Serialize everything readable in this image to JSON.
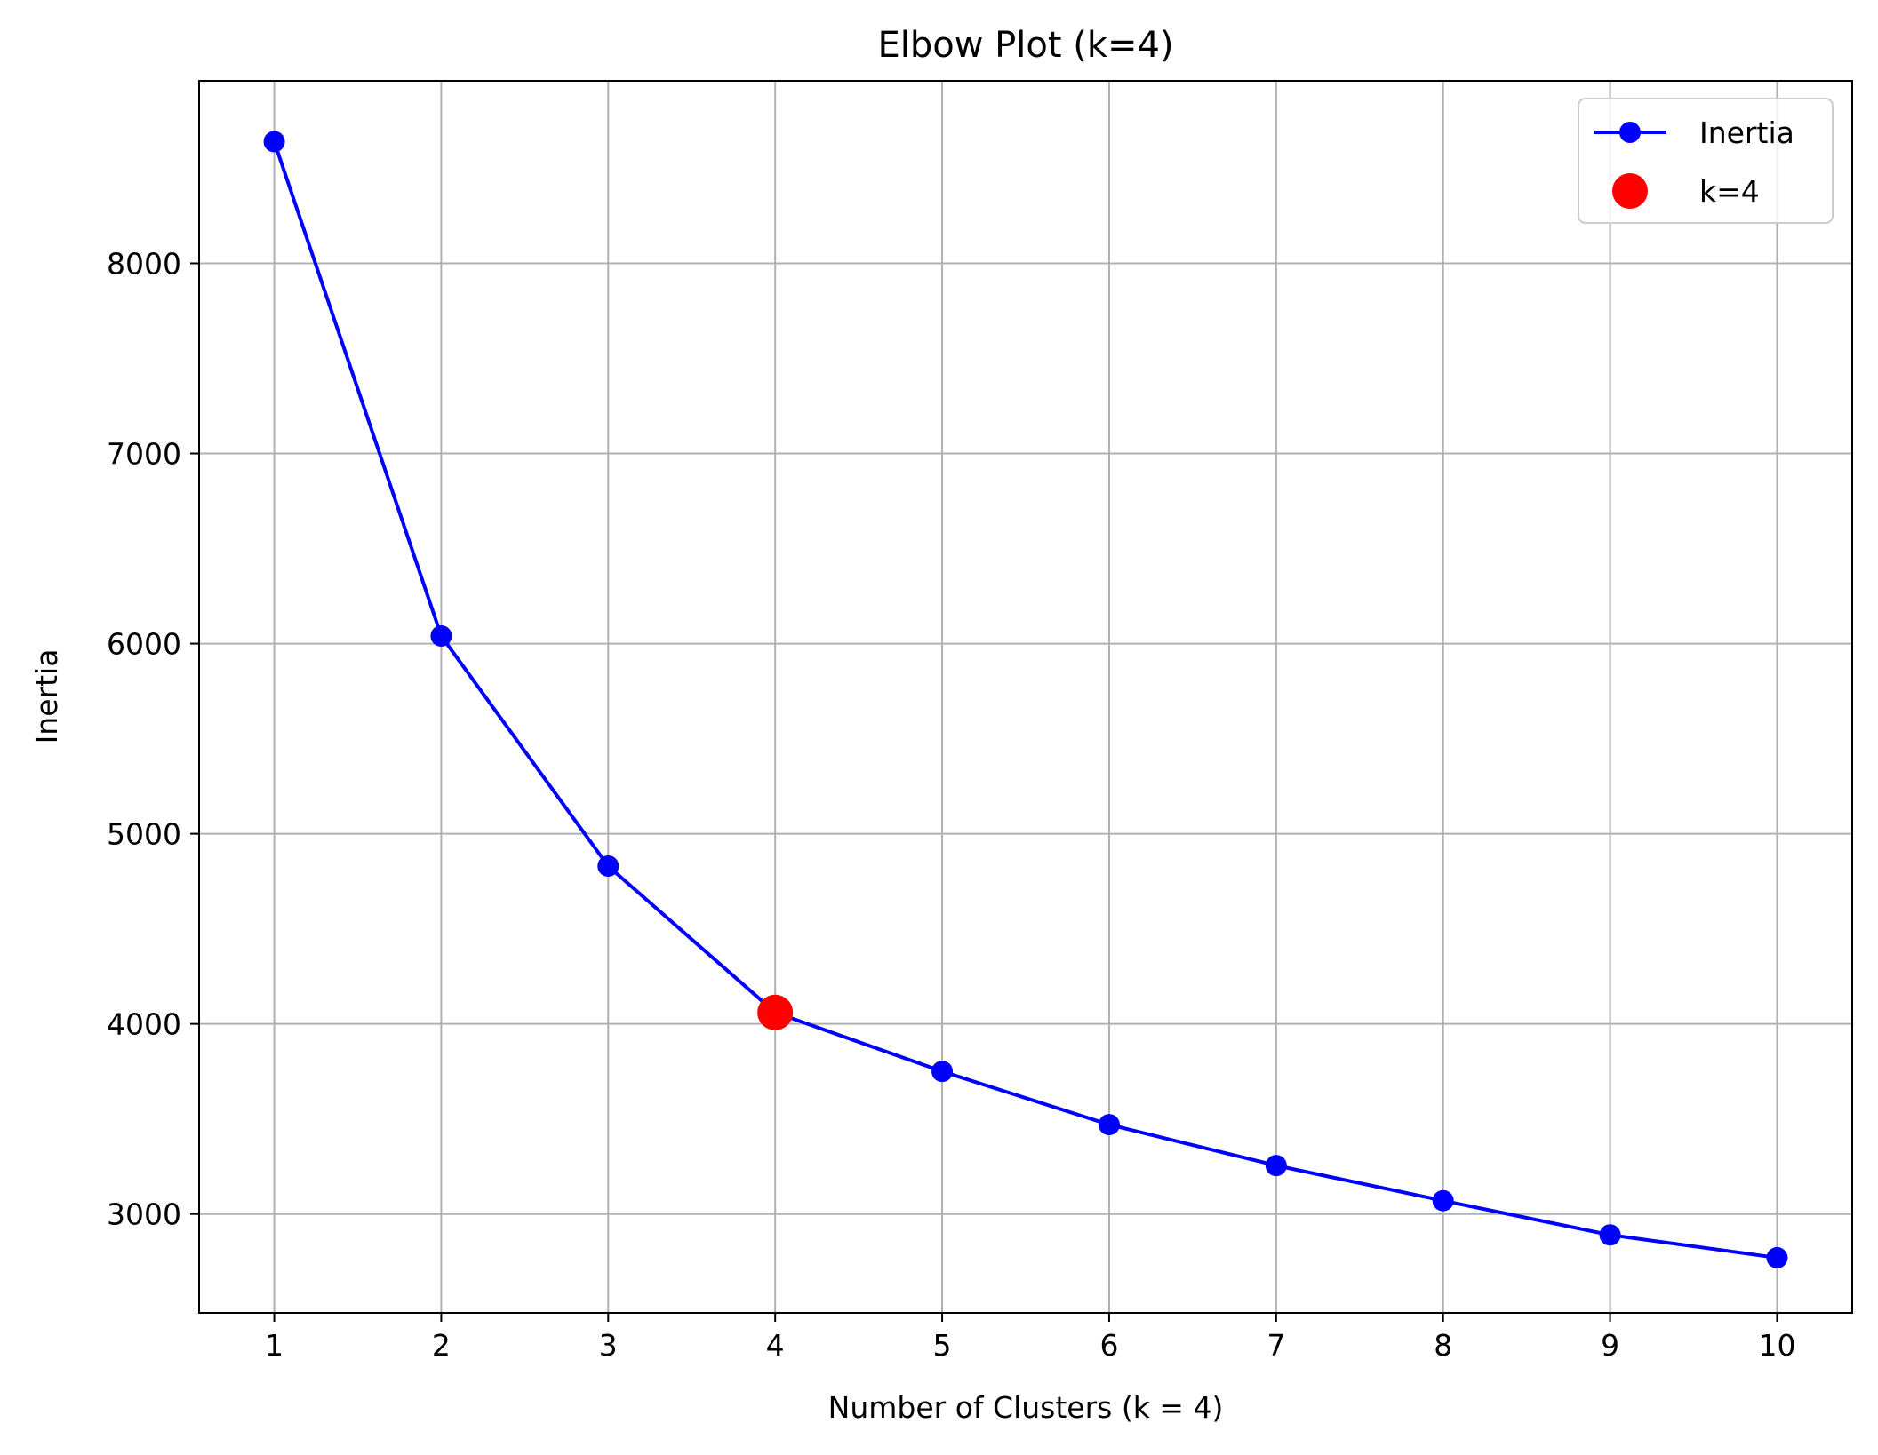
{
  "chart_data": {
    "type": "line",
    "title": "Elbow Plot (k=4)",
    "xlabel": "Number of Clusters (k = 4)",
    "ylabel": "Inertia",
    "x": [
      1,
      2,
      3,
      4,
      5,
      6,
      7,
      8,
      9,
      10
    ],
    "xlim": [
      0.55,
      10.45
    ],
    "ylim": [
      2480,
      8960
    ],
    "xticks": [
      1,
      2,
      3,
      4,
      5,
      6,
      7,
      8,
      9,
      10
    ],
    "yticks": [
      3000,
      4000,
      5000,
      6000,
      7000,
      8000
    ],
    "grid": true,
    "legend_position": "top-right",
    "series": [
      {
        "name": "Inertia",
        "style": "line-with-markers",
        "color": "#0000ff",
        "values": [
          8640,
          6040,
          4830,
          4060,
          3750,
          3470,
          3255,
          3070,
          2890,
          2770
        ]
      },
      {
        "name": "k=4",
        "style": "scatter",
        "color": "#ff0000",
        "points": [
          {
            "x": 4,
            "y": 4060
          }
        ]
      }
    ]
  }
}
